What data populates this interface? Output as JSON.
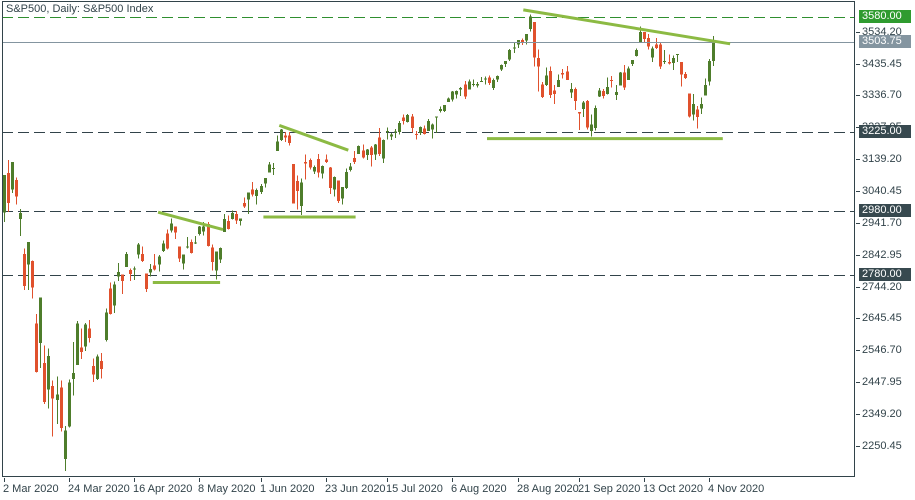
{
  "header": {
    "symbol_label": "S&P500, Daily: S&P500 Index"
  },
  "colors": {
    "background": "#ffffff",
    "frame": "#32434a",
    "axis_text": "#32434a",
    "level_dark": "#32434a",
    "level_green": "#2f8f2f",
    "badge_green": "#2f9b2f",
    "badge_dark": "#37494f",
    "current_price": "#8495a0",
    "candle_up": "#4e7d2b",
    "candle_down": "#e0512d",
    "trendline": "#8cba43"
  },
  "chart_data": {
    "type": "candlestick",
    "title": "S&P500, Daily: S&P500 Index",
    "symbol": "S&P500",
    "timeframe": "Daily",
    "grid": "horizontal-levels-only",
    "y_range": [
      2154.0,
      3629.6
    ],
    "current_price": 3503.75,
    "y_ticks": [
      3534.2,
      3435.45,
      3336.7,
      3237.95,
      3139.2,
      3040.45,
      2941.7,
      2842.95,
      2744.2,
      2645.45,
      2546.7,
      2447.95,
      2349.2,
      2250.45
    ],
    "x_ticks": [
      {
        "index": 0,
        "label": "2 Mar 2020"
      },
      {
        "index": 16,
        "label": "24 Mar 2020"
      },
      {
        "index": 32,
        "label": "16 Apr 2020"
      },
      {
        "index": 48,
        "label": "8 May 2020"
      },
      {
        "index": 63,
        "label": "1 Jun 2020"
      },
      {
        "index": 79,
        "label": "23 Jun 2020"
      },
      {
        "index": 94,
        "label": "15 Jul 2020"
      },
      {
        "index": 110,
        "label": "6 Aug 2020"
      },
      {
        "index": 126,
        "label": "28 Aug 2020"
      },
      {
        "index": 141,
        "label": "21 Sep 2020"
      },
      {
        "index": 157,
        "label": "13 Oct 2020"
      },
      {
        "index": 173,
        "label": "4 Nov 2020"
      }
    ],
    "levels": [
      {
        "price": 3580.0,
        "label": "3580.00",
        "line": "dashed",
        "color": "green"
      },
      {
        "price": 3503.75,
        "label": "3503.75",
        "line": "solid",
        "color": "gray"
      },
      {
        "price": 3225.0,
        "label": "3225.00",
        "line": "dashed",
        "color": "dark"
      },
      {
        "price": 2980.0,
        "label": "2980.00",
        "line": "dashed",
        "color": "dark"
      },
      {
        "price": 2780.0,
        "label": "2780.00",
        "line": "dashed",
        "color": "dark"
      }
    ],
    "trendlines": [
      {
        "i1": 36.6,
        "p1": 2757,
        "i2": 53.1,
        "p2": 2757
      },
      {
        "i1": 37.9,
        "p1": 2975,
        "i2": 53.8,
        "p2": 2921
      },
      {
        "i1": 63.7,
        "p1": 2960,
        "i2": 86.3,
        "p2": 2960
      },
      {
        "i1": 67.6,
        "p1": 3244,
        "i2": 84.5,
        "p2": 3167
      },
      {
        "i1": 118.5,
        "p1": 3203,
        "i2": 176.3,
        "p2": 3203
      },
      {
        "i1": 127.4,
        "p1": 3602,
        "i2": 178.1,
        "p2": 3497
      }
    ],
    "candles": [
      [
        2974,
        3090,
        2945,
        3090
      ],
      [
        3096,
        3136,
        2976,
        3003
      ],
      [
        3045,
        3130,
        3034,
        3130
      ],
      [
        3075,
        3083,
        2999,
        3024
      ],
      [
        2954,
        2985,
        2901,
        2972
      ],
      [
        2846,
        2863,
        2734,
        2746
      ],
      [
        2813,
        2882,
        2734,
        2882
      ],
      [
        2823,
        2825,
        2707,
        2741
      ],
      [
        2630,
        2660,
        2478,
        2480
      ],
      [
        2569,
        2711,
        2492,
        2711
      ],
      [
        2508,
        2562,
        2380,
        2386
      ],
      [
        2425,
        2553,
        2367,
        2529
      ],
      [
        2436,
        2453,
        2280,
        2398
      ],
      [
        2393,
        2466,
        2319,
        2409
      ],
      [
        2431,
        2453,
        2295,
        2305
      ],
      [
        2210,
        2312,
        2172,
        2298
      ],
      [
        2310,
        2457,
        2308,
        2447
      ],
      [
        2457,
        2572,
        2407,
        2476
      ],
      [
        2501,
        2637,
        2501,
        2630
      ],
      [
        2555,
        2615,
        2520,
        2541
      ],
      [
        2558,
        2631,
        2545,
        2627
      ],
      [
        2614,
        2641,
        2571,
        2585
      ],
      [
        2498,
        2522,
        2448,
        2471
      ],
      [
        2458,
        2533,
        2455,
        2527
      ],
      [
        2514,
        2538,
        2459,
        2489
      ],
      [
        2578,
        2676,
        2574,
        2664
      ],
      [
        2738,
        2757,
        2657,
        2659
      ],
      [
        2685,
        2760,
        2663,
        2750
      ],
      [
        2776,
        2818,
        2762,
        2790
      ],
      [
        2782,
        2782,
        2721,
        2762
      ],
      [
        2805,
        2852,
        2805,
        2846
      ],
      [
        2795,
        2801,
        2761,
        2783
      ],
      [
        2799,
        2806,
        2764,
        2800
      ],
      [
        2843,
        2880,
        2831,
        2875
      ],
      [
        2846,
        2869,
        2821,
        2823
      ],
      [
        2785,
        2785,
        2727,
        2737
      ],
      [
        2788,
        2815,
        2775,
        2799
      ],
      [
        2810,
        2845,
        2794,
        2798
      ],
      [
        2813,
        2842,
        2791,
        2837
      ],
      [
        2854,
        2887,
        2852,
        2878
      ],
      [
        2909,
        2921,
        2860,
        2863
      ],
      [
        2918,
        2955,
        2912,
        2940
      ],
      [
        2930,
        2930,
        2892,
        2912
      ],
      [
        2869,
        2869,
        2821,
        2831
      ],
      [
        2815,
        2844,
        2797,
        2843
      ],
      [
        2868,
        2898,
        2863,
        2868
      ],
      [
        2883,
        2891,
        2847,
        2848
      ],
      [
        2878,
        2901,
        2876,
        2881
      ],
      [
        2908,
        2932,
        2902,
        2930
      ],
      [
        2915,
        2944,
        2903,
        2930
      ],
      [
        2939,
        2945,
        2869,
        2870
      ],
      [
        2866,
        2874,
        2794,
        2820
      ],
      [
        2794,
        2853,
        2766,
        2853
      ],
      [
        2829,
        2865,
        2817,
        2864
      ],
      [
        2913,
        2969,
        2913,
        2954
      ],
      [
        2948,
        2964,
        2922,
        2923
      ],
      [
        2954,
        2980,
        2953,
        2972
      ],
      [
        2970,
        2978,
        2938,
        2949
      ],
      [
        2948,
        2956,
        2933,
        2955
      ],
      [
        3004,
        3021,
        2988,
        2992
      ],
      [
        3015,
        3036,
        2969,
        3036
      ],
      [
        3046,
        3068,
        3023,
        3030
      ],
      [
        3025,
        3049,
        2999,
        3044
      ],
      [
        3038,
        3062,
        3031,
        3056
      ],
      [
        3064,
        3081,
        3051,
        3081
      ],
      [
        3098,
        3130,
        3098,
        3123
      ],
      [
        3111,
        3128,
        3090,
        3112
      ],
      [
        3164,
        3212,
        3164,
        3194
      ],
      [
        3199,
        3233,
        3196,
        3232
      ],
      [
        3213,
        3223,
        3193,
        3207
      ],
      [
        3213,
        3223,
        3181,
        3190
      ],
      [
        3124,
        3124,
        3002,
        3002
      ],
      [
        3071,
        3088,
        2984,
        3041
      ],
      [
        2994,
        3079,
        2966,
        3067
      ],
      [
        3131,
        3153,
        3076,
        3125
      ],
      [
        3136,
        3141,
        3108,
        3113
      ],
      [
        3101,
        3120,
        3093,
        3115
      ],
      [
        3140,
        3155,
        3083,
        3098
      ],
      [
        3094,
        3120,
        3079,
        3118
      ],
      [
        3138,
        3154,
        3127,
        3131
      ],
      [
        3114,
        3115,
        3032,
        3050
      ],
      [
        3046,
        3086,
        3024,
        3084
      ],
      [
        3073,
        3073,
        3004,
        3009
      ],
      [
        3018,
        3053,
        2999,
        3053
      ],
      [
        3050,
        3111,
        3047,
        3100
      ],
      [
        3105,
        3128,
        3101,
        3116
      ],
      [
        3143,
        3165,
        3124,
        3130
      ],
      [
        3155,
        3182,
        3155,
        3180
      ],
      [
        3166,
        3184,
        3142,
        3145
      ],
      [
        3153,
        3171,
        3136,
        3170
      ],
      [
        3176,
        3180,
        3116,
        3152
      ],
      [
        3153,
        3186,
        3136,
        3185
      ],
      [
        3206,
        3236,
        3149,
        3155
      ],
      [
        3142,
        3200,
        3128,
        3198
      ],
      [
        3226,
        3238,
        3200,
        3227
      ],
      [
        3209,
        3220,
        3198,
        3216
      ],
      [
        3224,
        3233,
        3205,
        3225
      ],
      [
        3224,
        3258,
        3215,
        3252
      ],
      [
        3268,
        3277,
        3247,
        3257
      ],
      [
        3254,
        3279,
        3253,
        3276
      ],
      [
        3271,
        3279,
        3222,
        3236
      ],
      [
        3218,
        3227,
        3200,
        3216
      ],
      [
        3220,
        3241,
        3214,
        3239
      ],
      [
        3234,
        3243,
        3216,
        3218
      ],
      [
        3227,
        3264,
        3227,
        3258
      ],
      [
        3231,
        3250,
        3204,
        3246
      ],
      [
        3270,
        3272,
        3220,
        3271
      ],
      [
        3288,
        3302,
        3284,
        3295
      ],
      [
        3289,
        3307,
        3286,
        3307
      ],
      [
        3317,
        3330,
        3317,
        3328
      ],
      [
        3324,
        3351,
        3318,
        3349
      ],
      [
        3340,
        3352,
        3328,
        3351
      ],
      [
        3356,
        3363,
        3335,
        3360
      ],
      [
        3370,
        3381,
        3326,
        3333
      ],
      [
        3355,
        3387,
        3355,
        3380
      ],
      [
        3372,
        3387,
        3364,
        3373
      ],
      [
        3368,
        3378,
        3361,
        3373
      ],
      [
        3380,
        3394,
        3379,
        3382
      ],
      [
        3387,
        3395,
        3370,
        3390
      ],
      [
        3392,
        3399,
        3369,
        3375
      ],
      [
        3360,
        3390,
        3354,
        3385
      ],
      [
        3386,
        3399,
        3379,
        3397
      ],
      [
        3418,
        3432,
        3413,
        3431
      ],
      [
        3435,
        3444,
        3425,
        3443
      ],
      [
        3449,
        3481,
        3444,
        3478
      ],
      [
        3485,
        3501,
        3468,
        3485
      ],
      [
        3494,
        3509,
        3484,
        3508
      ],
      [
        3509,
        3514,
        3493,
        3500
      ],
      [
        3507,
        3528,
        3494,
        3527
      ],
      [
        3543,
        3588,
        3535,
        3581
      ],
      [
        3564,
        3565,
        3427,
        3455
      ],
      [
        3453,
        3480,
        3349,
        3427
      ],
      [
        3371,
        3379,
        3329,
        3332
      ],
      [
        3369,
        3424,
        3366,
        3399
      ],
      [
        3413,
        3426,
        3329,
        3339
      ],
      [
        3352,
        3369,
        3310,
        3341
      ],
      [
        3363,
        3402,
        3363,
        3384
      ],
      [
        3407,
        3419,
        3389,
        3401
      ],
      [
        3411,
        3428,
        3384,
        3385
      ],
      [
        3346,
        3375,
        3329,
        3357
      ],
      [
        3357,
        3362,
        3292,
        3319
      ],
      [
        3285,
        3285,
        3229,
        3281
      ],
      [
        3295,
        3320,
        3270,
        3315
      ],
      [
        3320,
        3323,
        3232,
        3237
      ],
      [
        3226,
        3278,
        3209,
        3247
      ],
      [
        3236,
        3306,
        3228,
        3298
      ],
      [
        3333,
        3360,
        3332,
        3352
      ],
      [
        3351,
        3357,
        3327,
        3335
      ],
      [
        3341,
        3393,
        3340,
        3363
      ],
      [
        3385,
        3397,
        3361,
        3381
      ],
      [
        3338,
        3369,
        3323,
        3348
      ],
      [
        3367,
        3409,
        3367,
        3408
      ],
      [
        3408,
        3431,
        3354,
        3361
      ],
      [
        3384,
        3426,
        3384,
        3420
      ],
      [
        3434,
        3447,
        3428,
        3447
      ],
      [
        3459,
        3482,
        3458,
        3477
      ],
      [
        3500,
        3550,
        3500,
        3534
      ],
      [
        3534,
        3534,
        3500,
        3511
      ],
      [
        3515,
        3527,
        3480,
        3489
      ],
      [
        3454,
        3489,
        3441,
        3483
      ],
      [
        3494,
        3515,
        3481,
        3484
      ],
      [
        3494,
        3500,
        3419,
        3427
      ],
      [
        3440,
        3477,
        3435,
        3443
      ],
      [
        3441,
        3464,
        3433,
        3435
      ],
      [
        3438,
        3460,
        3415,
        3453
      ],
      [
        3464,
        3466,
        3440,
        3465
      ],
      [
        3441,
        3441,
        3364,
        3401
      ],
      [
        3403,
        3409,
        3388,
        3391
      ],
      [
        3343,
        3343,
        3268,
        3271
      ],
      [
        3277,
        3341,
        3259,
        3310
      ],
      [
        3293,
        3304,
        3234,
        3270
      ],
      [
        3296,
        3330,
        3279,
        3310
      ],
      [
        3336,
        3389,
        3336,
        3369
      ],
      [
        3380,
        3450,
        3368,
        3443
      ],
      [
        3443,
        3521,
        3428,
        3503.75
      ]
    ]
  }
}
